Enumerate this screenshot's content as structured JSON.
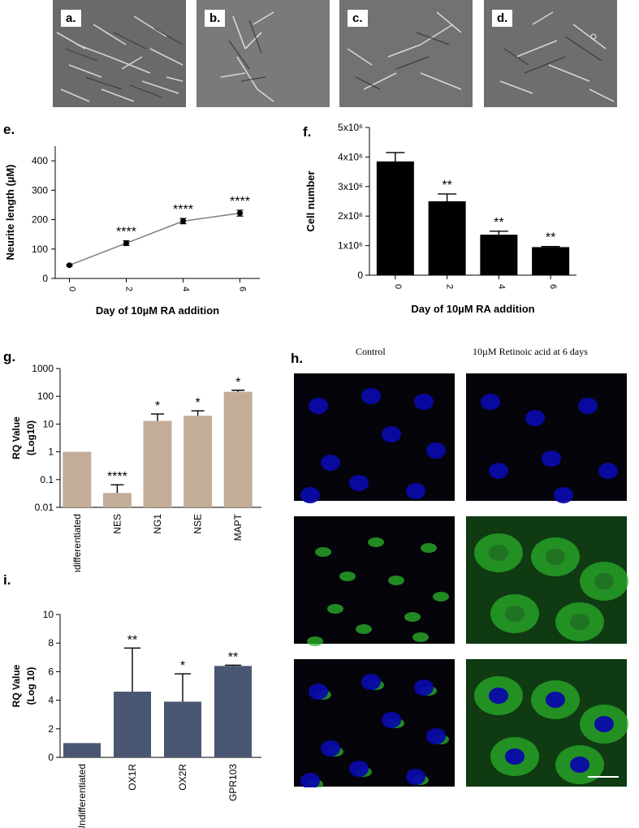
{
  "panels": {
    "a": "a.",
    "b": "b.",
    "c": "c.",
    "d": "d.",
    "e": "e.",
    "f": "f.",
    "g": "g.",
    "h": "h.",
    "i": "i."
  },
  "panel_h": {
    "col_control": "Control",
    "col_ra": "10µM Retinoic acid at 6 days",
    "colors": {
      "blue": "#0a0aa8",
      "green": "#2bb52b"
    }
  },
  "chart_data": [
    {
      "id": "e",
      "type": "line",
      "x": [
        0,
        2,
        4,
        6
      ],
      "y": [
        45,
        120,
        195,
        222
      ],
      "err": [
        3,
        8,
        9,
        10
      ],
      "annotations": [
        "",
        "****",
        "****",
        "****"
      ],
      "xlabel": "Day of 10µM RA addition",
      "ylabel": "Neurite length (µM)",
      "ylim": [
        0,
        450
      ],
      "yticks": [
        0,
        100,
        200,
        300,
        400
      ],
      "color": "#7f7f7f"
    },
    {
      "id": "f",
      "type": "bar",
      "categories": [
        "0",
        "2",
        "4",
        "6"
      ],
      "values": [
        3.85,
        2.5,
        1.37,
        0.95
      ],
      "err": [
        0.3,
        0.25,
        0.12,
        0.02
      ],
      "annotations": [
        "",
        "**",
        "**",
        "**"
      ],
      "xlabel": "Day of 10µM RA addition",
      "ylabel": "Cell number",
      "ylim": [
        0,
        5
      ],
      "yticks": [
        0,
        1,
        2,
        3,
        4,
        5
      ],
      "ytick_labels": [
        "0",
        "1x10⁶",
        "2x10⁶",
        "3x10⁶",
        "4x10⁶",
        "5x10⁶"
      ],
      "color": "#000000"
    },
    {
      "id": "g",
      "type": "bar",
      "scale": "log",
      "categories": [
        "Undifferentiated",
        "NES",
        "NG1",
        "NSE",
        "MAPT"
      ],
      "values": [
        1,
        0.033,
        13,
        20,
        145
      ],
      "err_top": [
        1,
        0.065,
        23,
        30,
        165
      ],
      "annotations": [
        "",
        "****",
        "*",
        "*",
        "*"
      ],
      "ylabel": "RQ Value (Log10)",
      "ylim": [
        0.01,
        1000
      ],
      "yticks": [
        0.01,
        0.1,
        1,
        10,
        100,
        1000
      ],
      "ytick_labels": [
        "0.01",
        "0.1",
        "1",
        "10",
        "100",
        "1000"
      ],
      "color": "#c4ad98"
    },
    {
      "id": "i",
      "type": "bar",
      "categories": [
        "Undifferentiated",
        "OX1R",
        "OX2R",
        "GPR103"
      ],
      "values": [
        1,
        4.6,
        3.9,
        6.4
      ],
      "err": [
        0,
        3.05,
        1.95,
        0.05
      ],
      "annotations": [
        "",
        "**",
        "*",
        "**"
      ],
      "ylabel": "RQ Value (Log 10)",
      "ylim": [
        0,
        10
      ],
      "yticks": [
        0,
        2,
        4,
        6,
        8,
        10
      ],
      "ytick_labels": [
        "0",
        "2",
        "4",
        "6",
        "8",
        "10"
      ],
      "color": "#4a5772"
    }
  ]
}
